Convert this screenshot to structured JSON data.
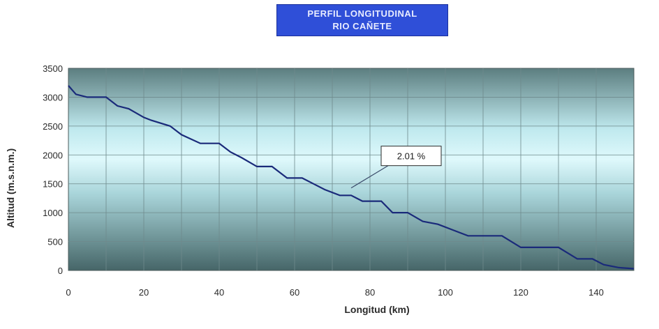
{
  "chart_data": {
    "type": "line",
    "title_line1": "PERFIL LONGITUDINAL",
    "title_line2": "RIO CAÑETE",
    "xlabel": "Longitud (km)",
    "ylabel": "Altitud (m.s.n.m.)",
    "xlim": [
      0,
      150
    ],
    "ylim": [
      0,
      3500
    ],
    "xticks": [
      0,
      20,
      40,
      60,
      80,
      100,
      120,
      140
    ],
    "yticks": [
      0,
      500,
      1000,
      1500,
      2000,
      2500,
      3000,
      3500
    ],
    "grid": true,
    "series_color": "#1a2a7a",
    "annotation": {
      "text": "2.01 %",
      "point": [
        75,
        1380
      ]
    },
    "series": [
      {
        "x": [
          0,
          2,
          5,
          10,
          13,
          16,
          20,
          22,
          27,
          30,
          35,
          40,
          43,
          46,
          50,
          54,
          58,
          62,
          65,
          68,
          72,
          75,
          78,
          83,
          86,
          90,
          94,
          98,
          102,
          106,
          110,
          115,
          120,
          125,
          130,
          135,
          139,
          142,
          146,
          150
        ],
        "y": [
          3200,
          3050,
          3000,
          3000,
          2850,
          2800,
          2650,
          2600,
          2500,
          2350,
          2200,
          2200,
          2050,
          1950,
          1800,
          1800,
          1600,
          1600,
          1500,
          1400,
          1300,
          1300,
          1200,
          1200,
          1000,
          1000,
          850,
          800,
          700,
          600,
          600,
          600,
          400,
          400,
          400,
          200,
          200,
          100,
          50,
          30
        ]
      }
    ]
  }
}
